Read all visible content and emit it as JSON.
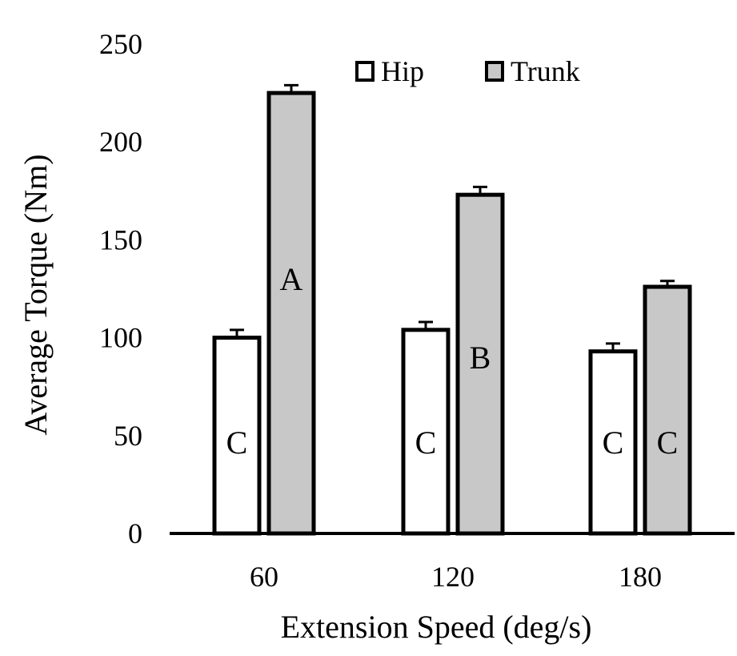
{
  "chart_data": {
    "type": "bar",
    "title": "",
    "xlabel": "Extension  Speed (deg/s)",
    "ylabel": "Average Torque (Nm)",
    "categories": [
      "60",
      "120",
      "180"
    ],
    "ylim": [
      0,
      250
    ],
    "yticks": [
      "0",
      "50",
      "100",
      "150",
      "200",
      "250"
    ],
    "grid": false,
    "legend_position": "top-right",
    "series": [
      {
        "name": "Hip",
        "color": "#ffffff",
        "values": [
          100,
          104,
          93
        ],
        "errors": [
          4,
          4,
          4
        ],
        "annotations": [
          "C",
          "C",
          "C"
        ]
      },
      {
        "name": "Trunk",
        "color": "#c8c8c8",
        "values": [
          225,
          173,
          126
        ],
        "errors": [
          4,
          4,
          3
        ],
        "annotations": [
          "A",
          "B",
          "C"
        ]
      }
    ]
  }
}
